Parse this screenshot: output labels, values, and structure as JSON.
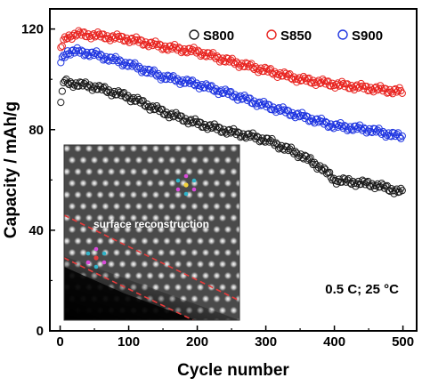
{
  "chart_data": {
    "type": "scatter",
    "title": "",
    "xlabel": "Cycle number",
    "ylabel": "Capacity / mAh/g",
    "xlim": [
      -15,
      520
    ],
    "ylim": [
      0,
      128
    ],
    "xticks": [
      0,
      100,
      200,
      300,
      400,
      500
    ],
    "yticks": [
      0,
      40,
      80,
      120
    ],
    "marker": "open-circle",
    "legend_position": "top-right",
    "series": [
      {
        "name": "S800",
        "color": "#1a1a1a",
        "points": [
          [
            1,
            90
          ],
          [
            5,
            99
          ],
          [
            10,
            98.6
          ],
          [
            20,
            98.3
          ],
          [
            50,
            97
          ],
          [
            100,
            93
          ],
          [
            150,
            87
          ],
          [
            200,
            82.5
          ],
          [
            250,
            79
          ],
          [
            300,
            76
          ],
          [
            350,
            70
          ],
          [
            380,
            65
          ],
          [
            400,
            60
          ],
          [
            430,
            59
          ],
          [
            460,
            58
          ],
          [
            500,
            55
          ]
        ]
      },
      {
        "name": "S850",
        "color": "#e8231f",
        "points": [
          [
            1,
            112
          ],
          [
            5,
            115
          ],
          [
            10,
            117
          ],
          [
            25,
            118
          ],
          [
            50,
            117.5
          ],
          [
            100,
            116
          ],
          [
            150,
            113
          ],
          [
            200,
            111
          ],
          [
            250,
            107
          ],
          [
            300,
            103.5
          ],
          [
            350,
            100
          ],
          [
            400,
            98
          ],
          [
            450,
            96.5
          ],
          [
            500,
            95
          ]
        ]
      },
      {
        "name": "S900",
        "color": "#1f35e0",
        "points": [
          [
            1,
            107
          ],
          [
            5,
            109
          ],
          [
            10,
            111
          ],
          [
            25,
            111
          ],
          [
            50,
            110
          ],
          [
            100,
            106
          ],
          [
            150,
            101
          ],
          [
            200,
            98
          ],
          [
            250,
            94
          ],
          [
            300,
            89.5
          ],
          [
            350,
            85.5
          ],
          [
            400,
            81.5
          ],
          [
            450,
            80
          ],
          [
            500,
            77
          ]
        ]
      }
    ],
    "annotations": [
      {
        "text": "0.5 C; 25 °C"
      },
      {
        "text": "surface reconstruction"
      }
    ]
  }
}
